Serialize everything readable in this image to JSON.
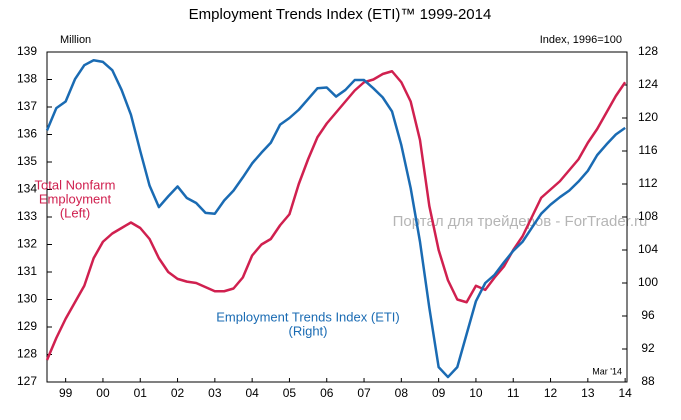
{
  "chart_data": {
    "type": "line",
    "title": "Employment Trends Index (ETI)™ 1999-2014",
    "y_label": "Million",
    "y2_label": "Index, 1996=100",
    "note": "Mar '14",
    "watermark": "Портал для трейдеров - ForTrader.ru",
    "xlim": [
      1999,
      2014.55
    ],
    "xticks": [
      {
        "value": 1999.5,
        "label": "99"
      },
      {
        "value": 2000.5,
        "label": "00"
      },
      {
        "value": 2001.5,
        "label": "01"
      },
      {
        "value": 2002.5,
        "label": "02"
      },
      {
        "value": 2003.5,
        "label": "03"
      },
      {
        "value": 2004.5,
        "label": "04"
      },
      {
        "value": 2005.5,
        "label": "05"
      },
      {
        "value": 2006.5,
        "label": "06"
      },
      {
        "value": 2007.5,
        "label": "07"
      },
      {
        "value": 2008.5,
        "label": "08"
      },
      {
        "value": 2009.5,
        "label": "09"
      },
      {
        "value": 2010.5,
        "label": "10"
      },
      {
        "value": 2011.5,
        "label": "11"
      },
      {
        "value": 2012.5,
        "label": "12"
      },
      {
        "value": 2013.5,
        "label": "13"
      },
      {
        "value": 2014.5,
        "label": "14"
      }
    ],
    "ylim": [
      127,
      139
    ],
    "yticks": [
      127,
      128,
      129,
      130,
      131,
      132,
      133,
      134,
      135,
      136,
      137,
      138,
      139
    ],
    "y2lim": [
      88,
      128
    ],
    "y2ticks": [
      88,
      92,
      96,
      100,
      104,
      108,
      112,
      116,
      120,
      124,
      128
    ],
    "x": [
      1999,
      1999.25,
      1999.5,
      1999.75,
      2000,
      2000.25,
      2000.5,
      2000.75,
      2001,
      2001.25,
      2001.5,
      2001.75,
      2002,
      2002.25,
      2002.5,
      2002.75,
      2003,
      2003.25,
      2003.5,
      2003.75,
      2004,
      2004.25,
      2004.5,
      2004.75,
      2005,
      2005.25,
      2005.5,
      2005.75,
      2006,
      2006.25,
      2006.5,
      2006.75,
      2007,
      2007.25,
      2007.5,
      2007.75,
      2008,
      2008.25,
      2008.5,
      2008.75,
      2009,
      2009.25,
      2009.5,
      2009.75,
      2010,
      2010.25,
      2010.5,
      2010.75,
      2011,
      2011.25,
      2011.5,
      2011.75,
      2012,
      2012.25,
      2012.5,
      2012.75,
      2013,
      2013.25,
      2013.5,
      2013.75,
      2014,
      2014.25,
      2014.5
    ],
    "series": [
      {
        "label": [
          "Total Nonfarm",
          "Employment",
          "(Left)"
        ],
        "color": "#d0204f",
        "axis": "y",
        "values": [
          127.8,
          128.6,
          129.3,
          129.9,
          130.5,
          131.5,
          132.1,
          132.4,
          132.6,
          132.8,
          132.6,
          132.2,
          131.5,
          131.0,
          130.75,
          130.65,
          130.6,
          130.45,
          130.3,
          130.3,
          130.4,
          130.8,
          131.6,
          132.0,
          132.2,
          132.7,
          133.1,
          134.2,
          135.1,
          135.9,
          136.4,
          136.8,
          137.2,
          137.6,
          137.9,
          138.0,
          138.2,
          138.3,
          137.9,
          137.2,
          135.8,
          133.4,
          131.8,
          130.7,
          130.0,
          129.9,
          130.5,
          130.35,
          130.8,
          131.2,
          131.8,
          132.3,
          133.0,
          133.7,
          134.0,
          134.3,
          134.7,
          135.1,
          135.7,
          136.2,
          136.8,
          137.4,
          137.9
        ]
      },
      {
        "label": [
          "Employment Trends Index (ETI)",
          "(Right)"
        ],
        "color": "#1a6bb3",
        "axis": "y2",
        "values": [
          118.5,
          121.2,
          122.0,
          124.7,
          126.4,
          127.0,
          126.8,
          125.8,
          123.4,
          120.4,
          116.0,
          111.8,
          109.2,
          110.5,
          111.7,
          110.3,
          109.7,
          108.5,
          108.4,
          110.0,
          111.2,
          112.8,
          114.5,
          115.8,
          117.0,
          119.2,
          120.0,
          121.0,
          122.3,
          123.6,
          123.7,
          122.6,
          123.4,
          124.6,
          124.6,
          123.6,
          122.5,
          120.8,
          116.7,
          111.5,
          105.0,
          97.0,
          89.8,
          88.6,
          89.8,
          93.8,
          97.8,
          100.0,
          101.0,
          102.5,
          103.9,
          105.0,
          106.7,
          108.4,
          109.5,
          110.4,
          111.2,
          112.3,
          113.6,
          115.5,
          116.8,
          118.0,
          118.8
        ]
      }
    ]
  }
}
